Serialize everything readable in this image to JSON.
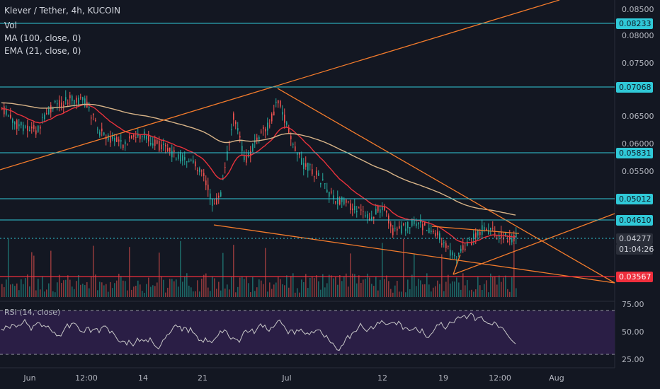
{
  "header": {
    "title": "Klever / Tether, 4h, KUCOIN",
    "vol": "Vol",
    "ma": "MA (100, close, 0)",
    "ema": "EMA (21, close, 0)"
  },
  "rsi": {
    "label": "RSI (14, close)",
    "ticks": [
      "75.00",
      "50.00",
      "25.00"
    ]
  },
  "price_axis": {
    "ticks": [
      "0.08500",
      "0.08000",
      "0.07500",
      "0.06500",
      "0.06000",
      "0.05500"
    ]
  },
  "levels": [
    {
      "label": "0.08233",
      "style": "cyan"
    },
    {
      "label": "0.07068",
      "style": "cyan"
    },
    {
      "label": "0.05831",
      "style": "cyan"
    },
    {
      "label": "0.05012",
      "style": "cyan"
    },
    {
      "label": "0.04610",
      "style": "cyan"
    },
    {
      "label": "0.03567",
      "style": "red"
    }
  ],
  "last_price": {
    "price": "0.04277",
    "countdown": "01:04:26"
  },
  "time_axis": [
    "Jun",
    "12:00",
    "14",
    "21",
    "Jul",
    "12",
    "19",
    "12:00",
    "Aug"
  ],
  "colors": {
    "bg": "#131722",
    "up": "#26a69a",
    "down": "#ef5350",
    "level": "#30c9d8",
    "trend": "#f57c2c",
    "ema": "#e8323c",
    "ma": "#d8b488",
    "rsi_bg": "#2a1e45",
    "rsi_line": "#c8c8c8"
  }
}
